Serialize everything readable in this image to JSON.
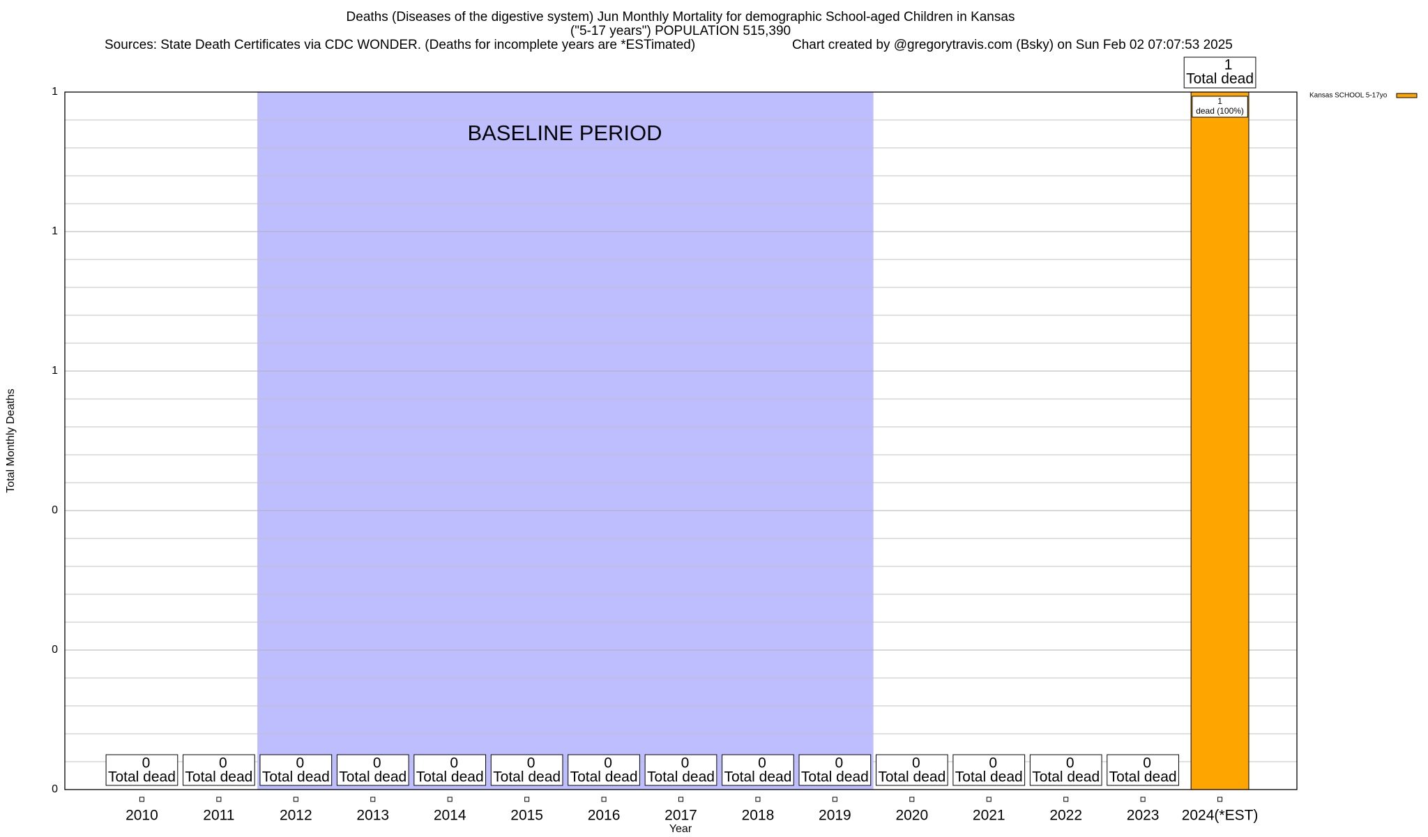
{
  "chart_data": {
    "type": "bar",
    "title": "Deaths (Diseases of the digestive system) Jun Monthly Mortality for demographic School-aged Children in Kansas",
    "subtitle": "(\"5-17 years\") POPULATION 515,390",
    "source": "Sources: State Death Certificates via CDC WONDER. (Deaths for incomplete years are *ESTimated)",
    "credit": "Chart created by @gregorytravis.com (Bsky) on Sun Feb 02 07:07:53 2025",
    "xlabel": "Year",
    "ylabel": "Total Monthly Deaths",
    "categories": [
      "2010",
      "2011",
      "2012",
      "2013",
      "2014",
      "2015",
      "2016",
      "2017",
      "2018",
      "2019",
      "2020",
      "2021",
      "2022",
      "2023",
      "2024(*EST)"
    ],
    "series": [
      {
        "name": "Kansas SCHOOL 5-17yo",
        "color": "#ffa500",
        "values": [
          0,
          0,
          0,
          0,
          0,
          0,
          0,
          0,
          0,
          0,
          0,
          0,
          0,
          0,
          1
        ]
      }
    ],
    "total_label_text": "Total dead",
    "share_label_text": "dead (100%)",
    "baseline_label": "BASELINE PERIOD",
    "baseline_color": "#bebeff",
    "ylim": [
      0,
      1
    ],
    "yticks": [
      0,
      {
        "value": 0.2,
        "label": "0"
      },
      {
        "value": 0.4,
        "label": "0"
      },
      {
        "value": 0.6,
        "label": "1"
      },
      {
        "value": 0.8,
        "label": "1"
      },
      1
    ],
    "minor_yticks": [
      0.04,
      0.08,
      0.12,
      0.16,
      0.24,
      0.28,
      0.32,
      0.36,
      0.44,
      0.48,
      0.52,
      0.56,
      0.64,
      0.68,
      0.72,
      0.76,
      0.84,
      0.88,
      0.92,
      0.96
    ],
    "grid": true,
    "legend": "top-right"
  }
}
